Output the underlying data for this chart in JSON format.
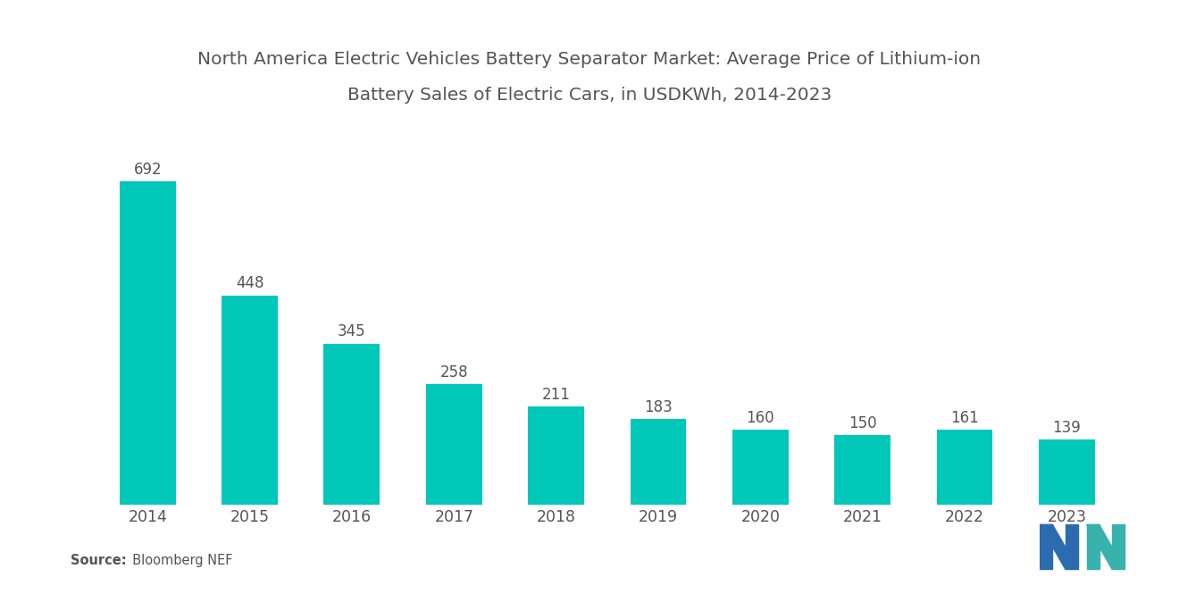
{
  "title_line1": "North America Electric Vehicles Battery Separator Market: Average Price of Lithium-ion",
  "title_line2": "Battery Sales of Electric Cars, in USDKWh, 2014-2023",
  "years": [
    "2014",
    "2015",
    "2016",
    "2017",
    "2018",
    "2019",
    "2020",
    "2021",
    "2022",
    "2023"
  ],
  "values": [
    692,
    448,
    345,
    258,
    211,
    183,
    160,
    150,
    161,
    139
  ],
  "bar_color": "#00C8B8",
  "background_color": "#FFFFFF",
  "label_color": "#555555",
  "source_bold": "Source:",
  "source_normal": "  Bloomberg NEF",
  "ylim": [
    0,
    800
  ],
  "bar_width": 0.55,
  "title_fontsize": 14.5,
  "label_fontsize": 12,
  "tick_fontsize": 12.5,
  "logo_left_color": "#2B6CB0",
  "logo_right_color": "#38B2AC"
}
